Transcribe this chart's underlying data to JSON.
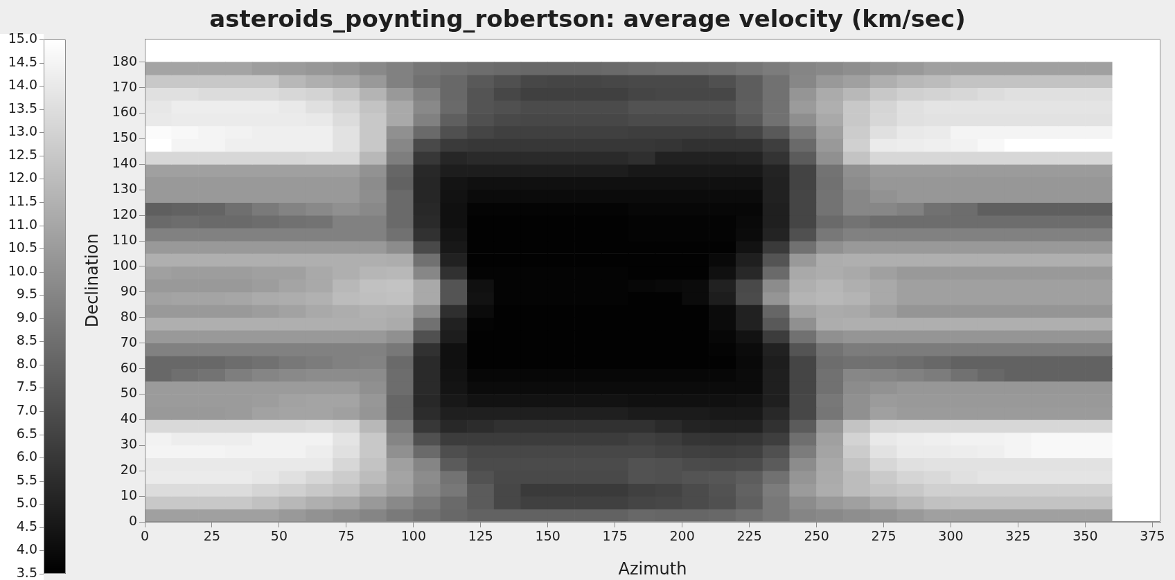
{
  "chart_data": {
    "type": "heatmap",
    "title": "asteroids_poynting_robertson: average velocity (km/sec)",
    "xlabel": "Azimuth",
    "ylabel": "Declination",
    "x": [
      5,
      15,
      25,
      35,
      45,
      55,
      65,
      75,
      85,
      95,
      105,
      115,
      125,
      135,
      145,
      155,
      165,
      175,
      185,
      195,
      205,
      215,
      225,
      235,
      245,
      255,
      265,
      275,
      285,
      295,
      305,
      315,
      325,
      335,
      345,
      355
    ],
    "y": [
      177.5,
      172.5,
      167.5,
      162.5,
      157.5,
      152.5,
      147.5,
      142.5,
      137.5,
      132.5,
      127.5,
      122.5,
      117.5,
      112.5,
      107.5,
      102.5,
      97.5,
      92.5,
      87.5,
      82.5,
      77.5,
      72.5,
      67.5,
      62.5,
      57.5,
      52.5,
      47.5,
      42.5,
      37.5,
      32.5,
      27.5,
      22.5,
      17.5,
      12.5,
      7.5,
      2.5
    ],
    "cells": [
      [
        10.9,
        10.9,
        10.9,
        10.9,
        10.6,
        10.5,
        10.3,
        10.1,
        9.7,
        9.3,
        8.8,
        8.6,
        8.4,
        8.3,
        8.2,
        8.2,
        8.2,
        8.3,
        8.4,
        8.5,
        8.5,
        8.6,
        8.8,
        9.1,
        9.5,
        9.7,
        9.9,
        10.2,
        10.4,
        10.7,
        10.7,
        10.7,
        10.7,
        10.7,
        10.7,
        10.7
      ],
      [
        12.5,
        12.5,
        12.5,
        12.5,
        12.5,
        11.8,
        11.4,
        11.1,
        10.4,
        9.3,
        8.6,
        8.2,
        7.5,
        7.1,
        6.7,
        6.6,
        6.6,
        6.7,
        6.8,
        6.8,
        6.8,
        7.1,
        7.7,
        8.6,
        9.6,
        10.4,
        10.7,
        11.4,
        11.8,
        12.0,
        12.3,
        12.3,
        12.3,
        12.3,
        12.3,
        12.3
      ],
      [
        13.6,
        13.6,
        13.4,
        13.4,
        13.4,
        13.2,
        13.0,
        12.5,
        11.6,
        10.4,
        9.3,
        8.2,
        7.3,
        6.7,
        6.4,
        6.4,
        6.4,
        6.4,
        6.6,
        6.7,
        6.7,
        6.7,
        7.7,
        8.6,
        10.2,
        11.2,
        11.8,
        12.5,
        12.9,
        13.0,
        13.2,
        13.4,
        13.6,
        13.6,
        13.6,
        13.6
      ],
      [
        13.9,
        14.2,
        14.2,
        14.2,
        14.2,
        14.0,
        13.6,
        13.1,
        12.3,
        11.1,
        9.7,
        8.3,
        7.3,
        7.1,
        6.9,
        6.9,
        6.9,
        6.9,
        7.2,
        7.2,
        7.2,
        7.2,
        7.8,
        8.6,
        10.5,
        11.4,
        12.5,
        13.1,
        13.6,
        13.8,
        13.8,
        13.8,
        13.8,
        13.8,
        13.8,
        13.8
      ],
      [
        14.0,
        14.1,
        14.1,
        14.1,
        14.1,
        14.1,
        14.0,
        13.4,
        12.5,
        11.1,
        9.3,
        7.8,
        7.1,
        6.8,
        6.7,
        6.7,
        6.7,
        6.7,
        6.9,
        6.9,
        6.9,
        6.9,
        7.5,
        8.6,
        9.9,
        11.1,
        12.5,
        13.2,
        13.6,
        13.7,
        13.7,
        13.7,
        13.7,
        13.7,
        13.7,
        13.7
      ],
      [
        14.8,
        14.7,
        14.5,
        14.4,
        14.3,
        14.3,
        14.3,
        13.7,
        12.5,
        10.0,
        8.3,
        7.1,
        6.6,
        6.4,
        6.4,
        6.4,
        6.4,
        6.4,
        6.3,
        6.3,
        6.3,
        6.3,
        6.6,
        7.5,
        9.0,
        10.7,
        12.7,
        13.6,
        14.0,
        14.1,
        14.5,
        14.5,
        14.5,
        14.5,
        14.5,
        14.5
      ],
      [
        15.0,
        14.5,
        14.5,
        14.3,
        14.3,
        14.3,
        14.3,
        13.7,
        12.5,
        9.6,
        6.8,
        6.1,
        6.0,
        6.0,
        6.0,
        6.0,
        6.0,
        6.0,
        6.0,
        5.9,
        5.7,
        5.7,
        5.7,
        6.3,
        8.3,
        10.4,
        12.9,
        14.1,
        14.2,
        14.3,
        14.4,
        14.7,
        15.0,
        15.0,
        15.0,
        15.0
      ],
      [
        13.2,
        13.2,
        13.2,
        13.2,
        13.2,
        13.2,
        13.3,
        13.3,
        11.8,
        9.2,
        6.0,
        5.2,
        5.4,
        5.4,
        5.4,
        5.4,
        5.4,
        5.4,
        5.6,
        5.0,
        5.0,
        5.0,
        5.1,
        5.8,
        7.6,
        10.0,
        12.3,
        13.2,
        13.2,
        13.2,
        13.2,
        13.2,
        13.2,
        13.2,
        13.2,
        13.2
      ],
      [
        10.7,
        10.7,
        10.7,
        10.7,
        10.7,
        10.7,
        10.7,
        10.7,
        10.1,
        8.1,
        5.3,
        4.8,
        4.8,
        4.8,
        4.8,
        4.8,
        4.8,
        4.8,
        4.6,
        4.6,
        4.6,
        4.6,
        4.6,
        5.1,
        6.5,
        8.7,
        10.0,
        10.5,
        10.5,
        10.5,
        10.5,
        10.5,
        10.5,
        10.5,
        10.5,
        10.5
      ],
      [
        10.4,
        10.4,
        10.4,
        10.4,
        10.4,
        10.4,
        10.4,
        10.4,
        9.8,
        7.9,
        5.2,
        4.4,
        4.2,
        4.2,
        4.2,
        4.2,
        4.2,
        4.2,
        4.2,
        4.2,
        4.2,
        4.2,
        4.2,
        5.0,
        6.5,
        8.6,
        9.8,
        10.3,
        10.3,
        10.3,
        10.3,
        10.3,
        10.3,
        10.3,
        10.3,
        10.3
      ],
      [
        10.4,
        10.4,
        10.4,
        10.4,
        10.4,
        10.4,
        10.4,
        10.4,
        9.9,
        8.3,
        5.2,
        4.3,
        4.0,
        4.0,
        4.0,
        4.0,
        4.0,
        4.0,
        4.0,
        4.0,
        4.0,
        4.0,
        4.0,
        5.0,
        6.6,
        8.7,
        9.6,
        10.1,
        10.3,
        10.3,
        10.3,
        10.3,
        10.3,
        10.3,
        10.3,
        10.3
      ],
      [
        7.8,
        7.9,
        8.0,
        8.5,
        9.0,
        9.4,
        9.7,
        10.0,
        9.7,
        8.3,
        5.3,
        4.2,
        3.7,
        3.7,
        3.7,
        3.7,
        3.7,
        3.7,
        3.8,
        3.8,
        3.8,
        3.8,
        3.8,
        4.9,
        6.6,
        8.7,
        9.6,
        9.6,
        9.3,
        8.6,
        8.4,
        7.8,
        7.8,
        7.8,
        7.8,
        7.8
      ],
      [
        8.3,
        8.4,
        8.3,
        8.3,
        8.4,
        8.6,
        8.7,
        9.3,
        9.3,
        8.3,
        5.4,
        4.2,
        3.6,
        3.6,
        3.6,
        3.6,
        3.6,
        3.6,
        3.7,
        3.7,
        3.7,
        3.7,
        3.9,
        4.9,
        6.6,
        8.3,
        8.7,
        8.4,
        8.4,
        8.4,
        8.4,
        8.4,
        8.4,
        8.4,
        8.4,
        8.4
      ],
      [
        9.3,
        9.3,
        9.3,
        9.3,
        9.3,
        9.3,
        9.3,
        9.3,
        9.3,
        8.6,
        5.7,
        4.4,
        3.6,
        3.6,
        3.6,
        3.6,
        3.6,
        3.6,
        3.7,
        3.7,
        3.7,
        3.7,
        4.0,
        5.1,
        7.1,
        8.9,
        9.3,
        9.3,
        9.3,
        9.3,
        9.3,
        9.3,
        9.3,
        9.3,
        9.3,
        9.3
      ],
      [
        10.4,
        10.4,
        10.4,
        10.4,
        10.4,
        10.4,
        10.4,
        10.4,
        10.4,
        9.8,
        6.8,
        4.6,
        3.6,
        3.6,
        3.6,
        3.6,
        3.6,
        3.6,
        3.6,
        3.6,
        3.6,
        3.6,
        4.3,
        6.1,
        8.6,
        10.0,
        10.4,
        10.4,
        10.4,
        10.4,
        10.4,
        10.4,
        10.4,
        10.4,
        10.4,
        10.4
      ],
      [
        11.4,
        11.4,
        11.4,
        11.4,
        11.4,
        11.4,
        11.4,
        11.4,
        11.4,
        11.3,
        8.6,
        5.0,
        3.6,
        3.6,
        3.6,
        3.6,
        3.6,
        3.6,
        3.6,
        3.6,
        3.6,
        3.9,
        4.9,
        7.3,
        10.4,
        11.3,
        11.4,
        11.4,
        11.4,
        11.4,
        11.4,
        11.4,
        11.4,
        11.4,
        11.4,
        11.4
      ],
      [
        10.7,
        10.6,
        10.6,
        10.6,
        10.7,
        10.7,
        11.1,
        11.4,
        11.7,
        11.8,
        9.6,
        5.7,
        3.7,
        3.7,
        3.7,
        3.7,
        3.7,
        3.7,
        3.6,
        3.6,
        3.6,
        4.2,
        5.3,
        8.3,
        11.1,
        11.3,
        11.1,
        10.7,
        10.4,
        10.4,
        10.4,
        10.4,
        10.4,
        10.4,
        10.4,
        10.4
      ],
      [
        10.4,
        10.4,
        10.4,
        10.4,
        10.6,
        10.9,
        11.1,
        11.8,
        12.2,
        12.3,
        11.1,
        7.3,
        4.2,
        3.7,
        3.7,
        3.7,
        3.7,
        3.7,
        3.8,
        3.9,
        4.0,
        5.0,
        6.8,
        9.8,
        11.4,
        11.7,
        11.4,
        11.1,
        10.7,
        10.7,
        10.7,
        10.7,
        10.7,
        10.7,
        10.7,
        10.7
      ],
      [
        10.8,
        10.9,
        10.9,
        11.0,
        11.2,
        11.3,
        11.5,
        12.0,
        12.1,
        12.2,
        11.1,
        7.3,
        4.3,
        3.7,
        3.7,
        3.7,
        3.7,
        3.7,
        3.6,
        3.6,
        4.0,
        4.8,
        6.9,
        10.2,
        11.6,
        11.8,
        11.6,
        11.1,
        10.7,
        10.7,
        10.7,
        10.7,
        10.7,
        10.7,
        10.7,
        10.7
      ],
      [
        10.4,
        10.4,
        10.4,
        10.4,
        10.6,
        10.8,
        11.1,
        11.3,
        11.5,
        11.4,
        9.8,
        5.6,
        4.0,
        3.6,
        3.6,
        3.6,
        3.6,
        3.6,
        3.6,
        3.6,
        3.6,
        4.0,
        5.0,
        8.1,
        10.8,
        11.2,
        11.1,
        10.7,
        10.2,
        10.2,
        10.2,
        10.2,
        10.2,
        10.2,
        10.2,
        10.2
      ],
      [
        11.4,
        11.4,
        11.4,
        11.4,
        11.4,
        11.4,
        11.4,
        11.4,
        11.4,
        11.2,
        8.6,
        5.0,
        3.7,
        3.6,
        3.6,
        3.6,
        3.6,
        3.6,
        3.6,
        3.6,
        3.6,
        4.0,
        5.0,
        7.5,
        10.0,
        11.3,
        11.4,
        11.4,
        11.4,
        11.4,
        11.4,
        11.4,
        11.4,
        11.4,
        11.4,
        11.4
      ],
      [
        10.4,
        10.4,
        10.4,
        10.4,
        10.4,
        10.4,
        10.4,
        10.4,
        10.4,
        10.0,
        7.1,
        4.8,
        3.6,
        3.6,
        3.6,
        3.6,
        3.6,
        3.6,
        3.6,
        3.6,
        3.6,
        3.8,
        4.3,
        6.2,
        8.6,
        10.0,
        10.2,
        10.2,
        10.2,
        10.2,
        10.2,
        10.2,
        10.2,
        10.2,
        10.2,
        10.2
      ],
      [
        9.3,
        9.3,
        9.3,
        9.3,
        9.3,
        9.3,
        9.3,
        9.3,
        9.3,
        8.9,
        5.7,
        4.2,
        3.6,
        3.6,
        3.6,
        3.6,
        3.6,
        3.6,
        3.6,
        3.6,
        3.6,
        3.7,
        4.0,
        5.0,
        7.3,
        8.7,
        9.1,
        9.1,
        9.1,
        9.1,
        9.1,
        9.1,
        9.1,
        9.1,
        9.1,
        9.1
      ],
      [
        8.2,
        8.2,
        8.2,
        8.4,
        8.6,
        8.9,
        9.1,
        9.3,
        9.4,
        8.3,
        5.4,
        4.2,
        3.6,
        3.6,
        3.6,
        3.6,
        3.6,
        3.6,
        3.6,
        3.6,
        3.6,
        3.6,
        3.9,
        4.8,
        6.6,
        8.4,
        8.6,
        8.6,
        8.4,
        8.2,
        7.9,
        7.9,
        7.9,
        7.9,
        7.9,
        7.9
      ],
      [
        8.2,
        8.5,
        8.7,
        9.2,
        9.5,
        9.7,
        9.8,
        9.8,
        9.8,
        8.4,
        5.4,
        4.3,
        3.8,
        3.8,
        3.8,
        3.8,
        3.8,
        3.8,
        3.8,
        3.8,
        3.8,
        3.8,
        4.0,
        4.9,
        6.6,
        8.6,
        9.6,
        9.5,
        9.3,
        9.1,
        8.6,
        8.2,
        7.9,
        7.9,
        7.9,
        7.9
      ],
      [
        10.5,
        10.5,
        10.5,
        10.5,
        10.5,
        10.5,
        10.5,
        10.5,
        10.0,
        8.4,
        5.4,
        4.4,
        4.0,
        4.0,
        4.0,
        4.0,
        4.0,
        4.0,
        4.0,
        4.0,
        4.0,
        4.0,
        4.0,
        4.9,
        6.6,
        8.6,
        9.8,
        10.1,
        10.3,
        10.3,
        10.3,
        10.3,
        10.3,
        10.3,
        10.3,
        10.3
      ],
      [
        10.5,
        10.5,
        10.5,
        10.5,
        10.6,
        10.8,
        10.9,
        10.9,
        10.3,
        8.1,
        5.3,
        4.6,
        4.3,
        4.3,
        4.3,
        4.3,
        4.3,
        4.3,
        4.2,
        4.2,
        4.2,
        4.2,
        4.3,
        4.9,
        6.7,
        8.9,
        10.0,
        10.5,
        10.4,
        10.4,
        10.4,
        10.4,
        10.4,
        10.4,
        10.4,
        10.4
      ],
      [
        10.4,
        10.4,
        10.4,
        10.5,
        10.8,
        10.9,
        10.9,
        10.7,
        10.2,
        8.1,
        5.5,
        4.9,
        4.9,
        4.9,
        4.9,
        4.9,
        4.9,
        4.9,
        4.7,
        4.7,
        4.7,
        4.6,
        4.6,
        5.3,
        6.7,
        8.8,
        10.0,
        10.7,
        10.5,
        10.5,
        10.5,
        10.5,
        10.5,
        10.5,
        10.5,
        10.5
      ],
      [
        13.3,
        13.3,
        13.3,
        13.3,
        13.3,
        13.3,
        13.4,
        13.2,
        11.8,
        9.0,
        6.0,
        5.3,
        5.5,
        5.7,
        5.7,
        5.7,
        5.7,
        5.7,
        5.7,
        5.4,
        5.1,
        5.0,
        5.0,
        5.7,
        7.6,
        10.2,
        12.3,
        13.1,
        13.2,
        13.2,
        13.2,
        13.2,
        13.2,
        13.2,
        13.2,
        13.2
      ],
      [
        14.4,
        14.2,
        14.2,
        14.2,
        14.4,
        14.4,
        14.4,
        13.8,
        12.5,
        9.5,
        7.1,
        6.2,
        6.2,
        6.2,
        6.2,
        6.2,
        6.2,
        6.2,
        6.4,
        6.2,
        5.9,
        5.8,
        5.9,
        6.3,
        8.5,
        10.7,
        13.0,
        14.0,
        14.2,
        14.3,
        14.4,
        14.4,
        14.5,
        14.7,
        14.7,
        14.7
      ],
      [
        14.5,
        14.5,
        14.5,
        14.4,
        14.4,
        14.4,
        14.2,
        13.6,
        12.5,
        10.0,
        8.3,
        7.0,
        6.7,
        6.7,
        6.7,
        6.7,
        6.7,
        6.7,
        6.7,
        6.5,
        6.4,
        6.3,
        6.4,
        7.1,
        9.1,
        10.9,
        12.7,
        13.7,
        14.1,
        14.1,
        14.2,
        14.3,
        14.5,
        14.7,
        14.7,
        14.7
      ],
      [
        14.0,
        14.0,
        14.0,
        14.0,
        14.0,
        14.0,
        14.0,
        13.2,
        12.3,
        10.7,
        9.5,
        7.6,
        6.9,
        6.9,
        6.9,
        6.9,
        6.9,
        6.9,
        7.2,
        7.1,
        6.9,
        6.8,
        6.9,
        7.6,
        9.8,
        11.1,
        12.3,
        13.2,
        13.6,
        13.7,
        13.7,
        13.7,
        13.7,
        13.7,
        13.7,
        13.7
      ],
      [
        14.1,
        14.1,
        14.1,
        14.1,
        13.9,
        13.6,
        13.2,
        12.7,
        12.0,
        10.9,
        9.8,
        8.7,
        7.2,
        6.8,
        6.8,
        6.8,
        6.8,
        6.8,
        7.2,
        7.1,
        7.3,
        7.4,
        7.7,
        8.6,
        10.2,
        11.2,
        12.0,
        12.6,
        13.1,
        13.3,
        13.6,
        13.8,
        13.8,
        13.8,
        13.8,
        13.8
      ],
      [
        13.4,
        13.4,
        13.4,
        13.4,
        13.1,
        12.9,
        12.5,
        12.2,
        11.4,
        10.7,
        9.6,
        8.9,
        7.6,
        6.7,
        6.1,
        6.1,
        6.1,
        6.1,
        6.4,
        6.5,
        6.9,
        7.2,
        7.9,
        9.1,
        10.5,
        11.3,
        12.0,
        12.3,
        12.5,
        12.9,
        12.9,
        12.9,
        12.9,
        12.9,
        12.9,
        12.9
      ],
      [
        12.5,
        12.5,
        12.5,
        12.5,
        12.2,
        11.8,
        11.4,
        11.1,
        10.4,
        9.7,
        9.0,
        8.3,
        7.6,
        6.7,
        6.4,
        6.4,
        6.4,
        6.4,
        6.6,
        6.7,
        6.9,
        7.1,
        7.8,
        8.9,
        9.8,
        10.4,
        10.7,
        11.3,
        11.8,
        12.2,
        12.3,
        12.3,
        12.3,
        12.3,
        12.3,
        12.3
      ],
      [
        10.7,
        10.7,
        10.7,
        10.7,
        10.7,
        10.4,
        10.1,
        9.8,
        9.5,
        9.0,
        8.6,
        8.2,
        7.9,
        7.9,
        7.9,
        7.9,
        7.9,
        7.9,
        8.2,
        8.1,
        8.1,
        8.2,
        8.5,
        8.9,
        9.5,
        9.7,
        9.9,
        10.1,
        10.4,
        10.7,
        10.7,
        10.7,
        10.7,
        10.7,
        10.7,
        10.7
      ]
    ],
    "xlim": [
      0,
      378
    ],
    "xticks": [
      0,
      25,
      50,
      75,
      100,
      125,
      150,
      175,
      200,
      225,
      250,
      275,
      300,
      325,
      350,
      375
    ],
    "ylim": [
      0,
      189
    ],
    "yticks": [
      0,
      10,
      20,
      30,
      40,
      50,
      60,
      70,
      80,
      90,
      100,
      110,
      120,
      130,
      140,
      150,
      160,
      170,
      180
    ],
    "clim": [
      3.5,
      15
    ],
    "cticks": [
      3.5,
      {
        "value": 4,
        "label": "4.0"
      },
      4.5,
      {
        "value": 5,
        "label": "5.0"
      },
      5.5,
      {
        "value": 6,
        "label": "6.0"
      },
      6.5,
      {
        "value": 7,
        "label": "7.0"
      },
      7.5,
      {
        "value": 8,
        "label": "8.0"
      },
      8.5,
      {
        "value": 9,
        "label": "9.0"
      },
      9.5,
      {
        "value": 10,
        "label": "10.0"
      },
      10.5,
      {
        "value": 11,
        "label": "11.0"
      },
      11.5,
      {
        "value": 12,
        "label": "12.0"
      },
      12.5,
      {
        "value": 13,
        "label": "13.0"
      },
      13.5,
      {
        "value": 14,
        "label": "14.0"
      },
      14.5,
      {
        "value": 15,
        "label": "15.0"
      }
    ]
  }
}
